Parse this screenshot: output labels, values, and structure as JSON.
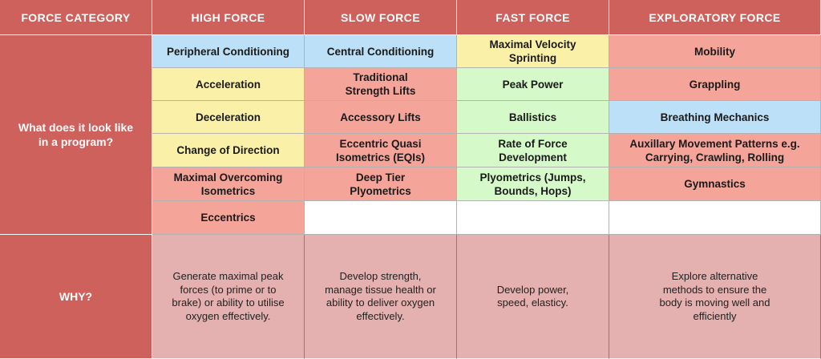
{
  "header": {
    "col0": "FORCE CATEGORY",
    "col1": "HIGH FORCE",
    "col2": "SLOW FORCE",
    "col3": "FAST FORCE",
    "col4": "EXPLORATORY FORCE"
  },
  "program_label": "What does it look like\nin a program?",
  "why_label": "WHY?",
  "colors": {
    "header": "#cf615c",
    "blue": "#bbe0f7",
    "yellow": "#fbf0a8",
    "pink": "#f5a49a",
    "green": "#d5f9c8",
    "empty": "#ffffff",
    "why_bg": "#e4b1b0"
  },
  "high_force": [
    {
      "text": "Peripheral Conditioning",
      "color": "blue"
    },
    {
      "text": "Acceleration",
      "color": "yellow"
    },
    {
      "text": "Deceleration",
      "color": "yellow"
    },
    {
      "text": "Change of Direction",
      "color": "yellow"
    },
    {
      "text": "Maximal Overcoming\nIsometrics",
      "color": "pink"
    },
    {
      "text": "Eccentrics",
      "color": "pink"
    }
  ],
  "slow_force": [
    {
      "text": "Central Conditioning",
      "color": "blue"
    },
    {
      "text": "Traditional\nStrength Lifts",
      "color": "pink"
    },
    {
      "text": "Accessory Lifts",
      "color": "pink"
    },
    {
      "text": "Eccentric Quasi\nIsometrics (EQIs)",
      "color": "pink"
    },
    {
      "text": "Deep Tier\nPlyometrics",
      "color": "pink"
    },
    {
      "text": "",
      "color": "empty"
    }
  ],
  "fast_force": [
    {
      "text": "Maximal Velocity\nSprinting",
      "color": "yellow"
    },
    {
      "text": "Peak Power",
      "color": "green"
    },
    {
      "text": "Ballistics",
      "color": "green"
    },
    {
      "text": "Rate of Force\nDevelopment",
      "color": "green"
    },
    {
      "text": "Plyometrics (Jumps,\nBounds, Hops)",
      "color": "green"
    },
    {
      "text": "",
      "color": "empty"
    }
  ],
  "exploratory_force": [
    {
      "text": "Mobility",
      "color": "pink"
    },
    {
      "text": "Grappling",
      "color": "pink"
    },
    {
      "text": "Breathing Mechanics",
      "color": "blue"
    },
    {
      "text": "Auxillary Movement Patterns e.g.\nCarrying, Crawling, Rolling",
      "color": "pink"
    },
    {
      "text": "Gymnastics",
      "color": "pink"
    },
    {
      "text": "",
      "color": "empty"
    }
  ],
  "why": {
    "high_force": "Generate maximal peak\nforces (to prime or to\nbrake) or ability to utilise\noxygen effectively.",
    "slow_force": "Develop strength,\nmanage tissue health or\nability to deliver oxygen\neffectively.",
    "fast_force": "Develop power,\nspeed, elasticy.",
    "exploratory_force": "Explore alternative\nmethods to ensure the\nbody is moving well and\nefficiently"
  }
}
